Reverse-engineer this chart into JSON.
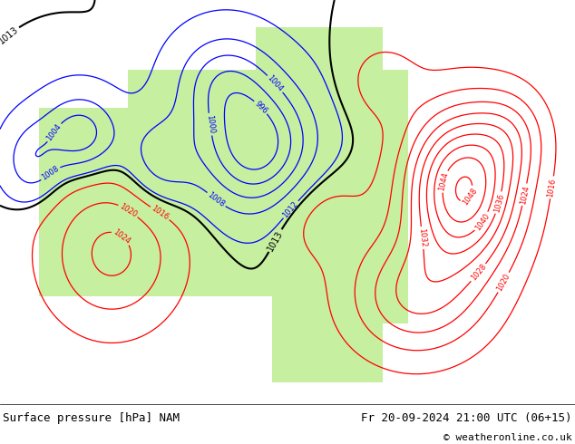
{
  "title_left": "Surface pressure [hPa] NAM",
  "title_right": "Fr 20-09-2024 21:00 UTC (06+15)",
  "copyright": "© weatheronline.co.uk",
  "bg_color": "#d3d3d3",
  "land_color": "#c8f0a0",
  "ocean_color": "#e8e8e8",
  "border_color": "#888888",
  "footer_bg": "#f0f0f0",
  "footer_text_color": "#000000",
  "contour_black_levels": [
    1013
  ],
  "contour_blue_levels": [
    996,
    1000,
    1004,
    1008,
    1012
  ],
  "contour_red_levels": [
    1016,
    1020,
    1024,
    1028,
    1032,
    1036,
    1040,
    1044,
    1048
  ],
  "pressure_min": 988,
  "pressure_max": 1052,
  "pressure_step": 4,
  "figsize": [
    6.34,
    4.9
  ],
  "dpi": 100
}
